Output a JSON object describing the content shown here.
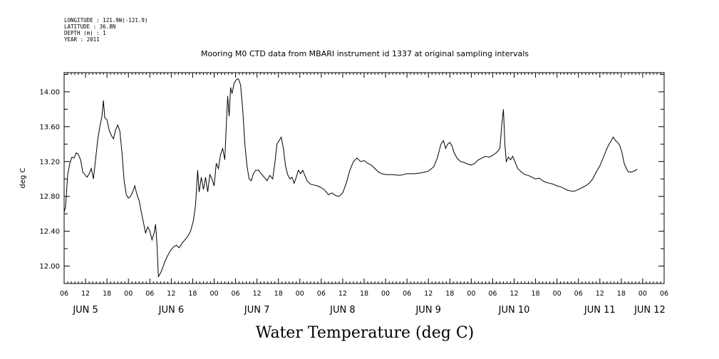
{
  "header": {
    "meta_lines": [
      "LONGITUDE : 121.9W(-121.9)",
      "LATITUDE : 36.8N",
      "DEPTH (m) : 1",
      "YEAR : 2011"
    ],
    "title": "Mooring M0 CTD data from MBARI instrument id 1337 at original sampling intervals"
  },
  "chart_data": {
    "type": "line",
    "title": "Mooring M0 CTD data from MBARI instrument id 1337 at original sampling intervals",
    "ylabel": "deg C",
    "xlabel": "Water Temperature (deg C)",
    "ylim": [
      11.8,
      14.22
    ],
    "y_ticks": [
      12.0,
      12.4,
      12.8,
      13.2,
      13.6,
      14.0
    ],
    "y_tick_labels": [
      "12.00",
      "12.40",
      "12.80",
      "13.20",
      "13.60",
      "14.00"
    ],
    "x_unit": "hours since Jun 5 00:00",
    "xlim": [
      6,
      174
    ],
    "x_ticks": [
      6,
      12,
      18,
      24,
      30,
      36,
      42,
      48,
      54,
      60,
      66,
      72,
      78,
      84,
      90,
      96,
      102,
      108,
      114,
      120,
      126,
      132,
      138,
      144,
      150,
      156,
      162,
      168,
      174
    ],
    "x_tick_labels": [
      "06",
      "12",
      "18",
      "00",
      "06",
      "12",
      "18",
      "00",
      "06",
      "12",
      "18",
      "00",
      "06",
      "12",
      "18",
      "00",
      "06",
      "12",
      "18",
      "00",
      "06",
      "12",
      "18",
      "00",
      "06",
      "12",
      "18",
      "00",
      "06"
    ],
    "day_labels": [
      {
        "label": "JUN  5",
        "hour": 12
      },
      {
        "label": "JUN  6",
        "hour": 36
      },
      {
        "label": "JUN  7",
        "hour": 60
      },
      {
        "label": "JUN  8",
        "hour": 84
      },
      {
        "label": "JUN  9",
        "hour": 108
      },
      {
        "label": "JUN 10",
        "hour": 132
      },
      {
        "label": "JUN 11",
        "hour": 156
      },
      {
        "label": "JUN 12",
        "hour": 170
      }
    ],
    "series": [
      {
        "values": [
          [
            6.0,
            12.62
          ],
          [
            6.4,
            12.68
          ],
          [
            7.0,
            13.05
          ],
          [
            7.6,
            13.18
          ],
          [
            8.2,
            13.25
          ],
          [
            8.8,
            13.24
          ],
          [
            9.4,
            13.3
          ],
          [
            10.0,
            13.28
          ],
          [
            10.6,
            13.22
          ],
          [
            11.2,
            13.08
          ],
          [
            11.8,
            13.05
          ],
          [
            12.4,
            13.02
          ],
          [
            13.0,
            13.06
          ],
          [
            13.6,
            13.12
          ],
          [
            14.2,
            13.0
          ],
          [
            14.8,
            13.22
          ],
          [
            15.4,
            13.45
          ],
          [
            16.0,
            13.6
          ],
          [
            16.6,
            13.72
          ],
          [
            17.0,
            13.9
          ],
          [
            17.4,
            13.7
          ],
          [
            18.0,
            13.68
          ],
          [
            18.6,
            13.56
          ],
          [
            19.2,
            13.5
          ],
          [
            19.8,
            13.46
          ],
          [
            20.4,
            13.56
          ],
          [
            21.0,
            13.62
          ],
          [
            21.6,
            13.55
          ],
          [
            22.2,
            13.3
          ],
          [
            22.8,
            12.98
          ],
          [
            23.4,
            12.82
          ],
          [
            24.0,
            12.78
          ],
          [
            24.6,
            12.8
          ],
          [
            25.2,
            12.85
          ],
          [
            25.8,
            12.92
          ],
          [
            26.4,
            12.82
          ],
          [
            27.0,
            12.75
          ],
          [
            27.6,
            12.62
          ],
          [
            28.2,
            12.5
          ],
          [
            28.8,
            12.38
          ],
          [
            29.4,
            12.45
          ],
          [
            30.0,
            12.4
          ],
          [
            30.6,
            12.3
          ],
          [
            31.2,
            12.38
          ],
          [
            31.6,
            12.48
          ],
          [
            32.0,
            12.25
          ],
          [
            32.4,
            11.88
          ],
          [
            33.0,
            11.92
          ],
          [
            33.6,
            11.98
          ],
          [
            34.2,
            12.05
          ],
          [
            35.0,
            12.12
          ],
          [
            35.8,
            12.18
          ],
          [
            36.6,
            12.22
          ],
          [
            37.4,
            12.24
          ],
          [
            38.2,
            12.21
          ],
          [
            39.0,
            12.26
          ],
          [
            39.8,
            12.3
          ],
          [
            40.6,
            12.34
          ],
          [
            41.4,
            12.4
          ],
          [
            42.2,
            12.52
          ],
          [
            42.8,
            12.7
          ],
          [
            43.4,
            13.1
          ],
          [
            43.8,
            12.85
          ],
          [
            44.4,
            13.02
          ],
          [
            45.0,
            12.88
          ],
          [
            45.6,
            13.02
          ],
          [
            46.2,
            12.85
          ],
          [
            46.8,
            13.05
          ],
          [
            47.4,
            13.0
          ],
          [
            48.0,
            12.92
          ],
          [
            48.6,
            13.18
          ],
          [
            49.2,
            13.12
          ],
          [
            49.8,
            13.28
          ],
          [
            50.4,
            13.35
          ],
          [
            51.0,
            13.22
          ],
          [
            51.4,
            13.6
          ],
          [
            51.8,
            13.95
          ],
          [
            52.2,
            13.72
          ],
          [
            52.6,
            14.05
          ],
          [
            53.0,
            13.98
          ],
          [
            53.6,
            14.1
          ],
          [
            54.2,
            14.14
          ],
          [
            54.8,
            14.15
          ],
          [
            55.4,
            14.08
          ],
          [
            56.0,
            13.8
          ],
          [
            56.6,
            13.4
          ],
          [
            57.2,
            13.15
          ],
          [
            57.8,
            13.0
          ],
          [
            58.4,
            12.98
          ],
          [
            59.0,
            13.06
          ],
          [
            59.6,
            13.1
          ],
          [
            60.4,
            13.1
          ],
          [
            61.2,
            13.06
          ],
          [
            62.0,
            13.02
          ],
          [
            62.8,
            12.98
          ],
          [
            63.6,
            13.04
          ],
          [
            64.4,
            13.0
          ],
          [
            65.0,
            13.18
          ],
          [
            65.6,
            13.4
          ],
          [
            66.2,
            13.44
          ],
          [
            66.8,
            13.48
          ],
          [
            67.4,
            13.35
          ],
          [
            68.0,
            13.15
          ],
          [
            68.6,
            13.05
          ],
          [
            69.2,
            13.0
          ],
          [
            69.8,
            13.02
          ],
          [
            70.4,
            12.95
          ],
          [
            71.0,
            13.02
          ],
          [
            71.6,
            13.1
          ],
          [
            72.2,
            13.06
          ],
          [
            72.8,
            13.1
          ],
          [
            73.4,
            13.04
          ],
          [
            74.0,
            12.98
          ],
          [
            75.0,
            12.94
          ],
          [
            76.0,
            12.93
          ],
          [
            77.0,
            12.92
          ],
          [
            78.0,
            12.9
          ],
          [
            79.0,
            12.87
          ],
          [
            80.0,
            12.82
          ],
          [
            81.0,
            12.84
          ],
          [
            82.0,
            12.81
          ],
          [
            83.0,
            12.8
          ],
          [
            84.0,
            12.84
          ],
          [
            85.0,
            12.95
          ],
          [
            86.0,
            13.1
          ],
          [
            87.0,
            13.2
          ],
          [
            88.0,
            13.24
          ],
          [
            89.0,
            13.2
          ],
          [
            90.0,
            13.21
          ],
          [
            91.0,
            13.18
          ],
          [
            92.0,
            13.16
          ],
          [
            93.0,
            13.12
          ],
          [
            94.0,
            13.08
          ],
          [
            95.0,
            13.06
          ],
          [
            96.0,
            13.05
          ],
          [
            98.0,
            13.05
          ],
          [
            100.0,
            13.04
          ],
          [
            102.0,
            13.06
          ],
          [
            104.0,
            13.06
          ],
          [
            106.0,
            13.07
          ],
          [
            108.0,
            13.09
          ],
          [
            109.5,
            13.14
          ],
          [
            110.5,
            13.24
          ],
          [
            111.5,
            13.4
          ],
          [
            112.2,
            13.44
          ],
          [
            112.8,
            13.35
          ],
          [
            113.4,
            13.4
          ],
          [
            114.0,
            13.42
          ],
          [
            114.6,
            13.38
          ],
          [
            115.2,
            13.3
          ],
          [
            116.0,
            13.24
          ],
          [
            117.0,
            13.2
          ],
          [
            118.0,
            13.19
          ],
          [
            119.0,
            13.17
          ],
          [
            120.0,
            13.16
          ],
          [
            121.0,
            13.18
          ],
          [
            122.0,
            13.22
          ],
          [
            123.0,
            13.24
          ],
          [
            124.0,
            13.26
          ],
          [
            125.0,
            13.25
          ],
          [
            126.0,
            13.27
          ],
          [
            127.0,
            13.3
          ],
          [
            128.0,
            13.35
          ],
          [
            128.6,
            13.65
          ],
          [
            129.0,
            13.8
          ],
          [
            129.4,
            13.4
          ],
          [
            129.8,
            13.2
          ],
          [
            130.4,
            13.25
          ],
          [
            131.0,
            13.22
          ],
          [
            131.6,
            13.26
          ],
          [
            132.2,
            13.2
          ],
          [
            133.0,
            13.12
          ],
          [
            134.0,
            13.08
          ],
          [
            135.0,
            13.05
          ],
          [
            136.0,
            13.04
          ],
          [
            137.0,
            13.02
          ],
          [
            138.0,
            13.0
          ],
          [
            139.0,
            13.01
          ],
          [
            140.0,
            12.98
          ],
          [
            141.0,
            12.96
          ],
          [
            142.0,
            12.95
          ],
          [
            143.0,
            12.94
          ],
          [
            144.0,
            12.92
          ],
          [
            145.0,
            12.91
          ],
          [
            146.0,
            12.89
          ],
          [
            147.0,
            12.87
          ],
          [
            148.0,
            12.86
          ],
          [
            149.0,
            12.86
          ],
          [
            150.0,
            12.88
          ],
          [
            151.0,
            12.9
          ],
          [
            152.0,
            12.92
          ],
          [
            153.0,
            12.95
          ],
          [
            154.0,
            13.0
          ],
          [
            155.0,
            13.08
          ],
          [
            156.0,
            13.15
          ],
          [
            157.0,
            13.25
          ],
          [
            158.0,
            13.35
          ],
          [
            158.6,
            13.4
          ],
          [
            159.2,
            13.44
          ],
          [
            159.8,
            13.48
          ],
          [
            160.4,
            13.44
          ],
          [
            161.0,
            13.42
          ],
          [
            161.6,
            13.38
          ],
          [
            162.2,
            13.3
          ],
          [
            162.8,
            13.18
          ],
          [
            163.4,
            13.12
          ],
          [
            164.0,
            13.08
          ],
          [
            165.0,
            13.08
          ],
          [
            166.0,
            13.1
          ],
          [
            166.5,
            13.11
          ]
        ]
      }
    ]
  }
}
